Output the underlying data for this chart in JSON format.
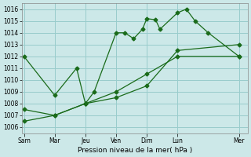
{
  "xlabel": "Pression niveau de la mer( hPa )",
  "bg_color": "#cce8e8",
  "grid_color": "#99cccc",
  "line_color": "#1a6b1a",
  "ylim": [
    1005.5,
    1016.5
  ],
  "yticks": [
    1006,
    1007,
    1008,
    1009,
    1010,
    1011,
    1012,
    1013,
    1014,
    1015,
    1016
  ],
  "xlim": [
    -0.1,
    10.2
  ],
  "x_tick_positions": [
    0,
    1.4,
    2.8,
    4.2,
    5.6,
    7.0,
    9.8
  ],
  "x_tick_labels": [
    "Sam",
    "Mar",
    "Jeu",
    "Ven",
    "Dim",
    "Lun",
    "Mer"
  ],
  "series1_x": [
    0,
    1.4,
    2.4,
    2.8,
    3.2,
    4.2,
    4.6,
    5.0,
    5.4,
    5.6,
    6.0,
    6.2,
    7.0,
    7.4,
    7.8,
    8.4,
    9.8
  ],
  "series1_y": [
    1012,
    1008.7,
    1011.0,
    1008.0,
    1009.0,
    1014.0,
    1014.0,
    1013.5,
    1014.3,
    1015.2,
    1015.1,
    1014.3,
    1015.7,
    1016.0,
    1015.0,
    1014.0,
    1012.0
  ],
  "series2_x": [
    0,
    1.4,
    2.8,
    4.2,
    5.6,
    7.0,
    9.8
  ],
  "series2_y": [
    1006.5,
    1007.0,
    1008.0,
    1009.0,
    1010.5,
    1012.0,
    1012.0
  ],
  "series3_x": [
    0,
    1.4,
    2.8,
    4.2,
    5.6,
    7.0,
    9.8
  ],
  "series3_y": [
    1007.5,
    1007.0,
    1008.0,
    1008.5,
    1009.5,
    1012.5,
    1013.0
  ]
}
